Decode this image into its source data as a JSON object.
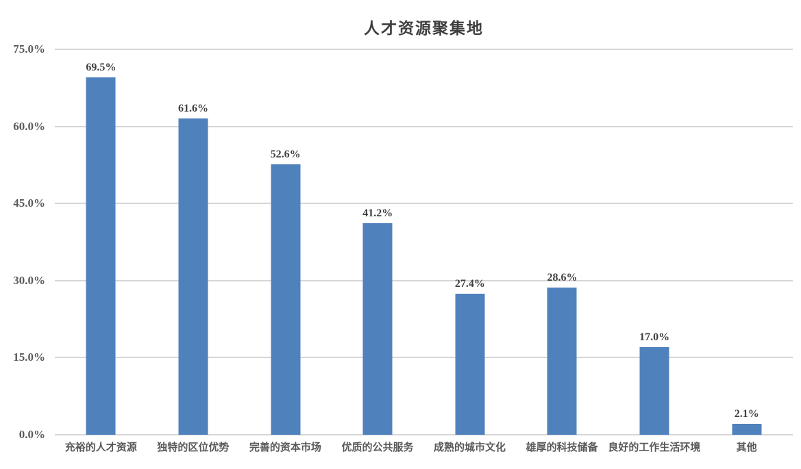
{
  "chart_data": {
    "type": "bar",
    "title": "人才资源聚集地",
    "categories": [
      "充裕的人才资源",
      "独特的区位优势",
      "完善的资本市场",
      "优质的公共服务",
      "成熟的城市文化",
      "雄厚的科技储备",
      "良好的工作生活环境",
      "其他"
    ],
    "values": [
      69.5,
      61.6,
      52.6,
      41.2,
      27.4,
      28.6,
      17.0,
      2.1
    ],
    "value_labels": [
      "69.5%",
      "61.6%",
      "52.6%",
      "41.2%",
      "27.4%",
      "28.6%",
      "17.0%",
      "2.1%"
    ],
    "xlabel": "",
    "ylabel": "",
    "ylim": [
      0,
      75
    ],
    "y_ticks": [
      0,
      15,
      30,
      45,
      60,
      75
    ],
    "y_tick_labels": [
      "0.0%",
      "15.0%",
      "30.0%",
      "45.0%",
      "60.0%",
      "75.0%"
    ],
    "grid": "horizontal",
    "legend": "none",
    "colors": {
      "bar": "#4F81BD",
      "gridline": "#D6D6D6",
      "title_text": "#3F3F3F",
      "value_label_text": "#3F3F3F",
      "axis_label_text": "#595959",
      "background": "#FFFFFF"
    }
  }
}
